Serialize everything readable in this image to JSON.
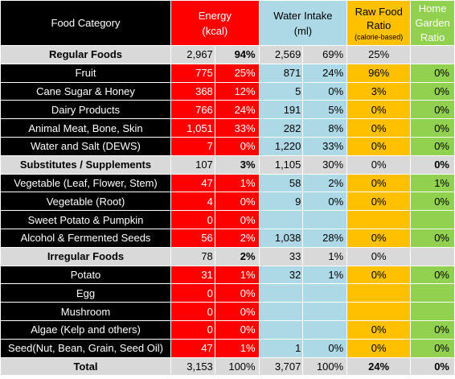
{
  "header": {
    "food_category": "Food Category",
    "energy_l1": "Energy",
    "energy_l2": "(kcal)",
    "water_l1": "Water Intake",
    "water_l2": "(ml)",
    "raw_l1": "Raw Food",
    "raw_l2": "Ratio",
    "raw_l3": "(calorie-based)",
    "home_l1": "Home",
    "home_l2": "Garden",
    "home_l3": "Ratio"
  },
  "rows": [
    {
      "name": "Regular Foods",
      "energy": "2,967",
      "energy_pct": "94%",
      "water": "2,569",
      "water_pct": "69%",
      "raw": "25%",
      "home": ""
    },
    {
      "name": "Fruit",
      "energy": "775",
      "energy_pct": "25%",
      "water": "871",
      "water_pct": "24%",
      "raw": "96%",
      "home": "0%"
    },
    {
      "name": "Cane Sugar & Honey",
      "energy": "368",
      "energy_pct": "12%",
      "water": "5",
      "water_pct": "0%",
      "raw": "3%",
      "home": "0%"
    },
    {
      "name": "Dairy Products",
      "energy": "766",
      "energy_pct": "24%",
      "water": "191",
      "water_pct": "5%",
      "raw": "0%",
      "home": "0%"
    },
    {
      "name": "Animal Meat, Bone, Skin",
      "energy": "1,051",
      "energy_pct": "33%",
      "water": "282",
      "water_pct": "8%",
      "raw": "0%",
      "home": "0%"
    },
    {
      "name": "Water and Salt (DEWS)",
      "energy": "7",
      "energy_pct": "0%",
      "water": "1,220",
      "water_pct": "33%",
      "raw": "0%",
      "home": "0%"
    },
    {
      "name": "Substitutes / Supplements",
      "energy": "107",
      "energy_pct": "3%",
      "water": "1,105",
      "water_pct": "30%",
      "raw": "0%",
      "home": "0%"
    },
    {
      "name": "Vegetable (Leaf, Flower, Stem)",
      "energy": "47",
      "energy_pct": "1%",
      "water": "58",
      "water_pct": "2%",
      "raw": "0%",
      "home": "1%"
    },
    {
      "name": "Vegetable (Root)",
      "energy": "4",
      "energy_pct": "0%",
      "water": "9",
      "water_pct": "0%",
      "raw": "0%",
      "home": "0%"
    },
    {
      "name": "Sweet Potato & Pumpkin",
      "energy": "0",
      "energy_pct": "0%",
      "water": "",
      "water_pct": "",
      "raw": "",
      "home": ""
    },
    {
      "name": "Alcohol & Fermented Seeds",
      "energy": "56",
      "energy_pct": "2%",
      "water": "1,038",
      "water_pct": "28%",
      "raw": "0%",
      "home": "0%"
    },
    {
      "name": "Irregular Foods",
      "energy": "78",
      "energy_pct": "2%",
      "water": "33",
      "water_pct": "1%",
      "raw": "0%",
      "home": ""
    },
    {
      "name": "Potato",
      "energy": "31",
      "energy_pct": "1%",
      "water": "32",
      "water_pct": "1%",
      "raw": "0%",
      "home": "0%"
    },
    {
      "name": "Egg",
      "energy": "0",
      "energy_pct": "0%",
      "water": "",
      "water_pct": "",
      "raw": "",
      "home": ""
    },
    {
      "name": "Mushroom",
      "energy": "0",
      "energy_pct": "0%",
      "water": "",
      "water_pct": "",
      "raw": "",
      "home": ""
    },
    {
      "name": "Algae (Kelp and others)",
      "energy": "0",
      "energy_pct": "0%",
      "water": "",
      "water_pct": "",
      "raw": "0%",
      "home": "0%"
    },
    {
      "name": "Seed(Nut, Bean, Grain, Seed Oil)",
      "energy": "47",
      "energy_pct": "1%",
      "water": "1",
      "water_pct": "0%",
      "raw": "0%",
      "home": "0%"
    },
    {
      "name": "Total",
      "energy": "3,153",
      "energy_pct": "100%",
      "water": "3,707",
      "water_pct": "100%",
      "raw": "24%",
      "home": "0%"
    }
  ],
  "colors": {
    "energy_column": "#ff0000",
    "water_column": "#add8e6",
    "raw_column": "#ffc000",
    "home_column": "#92d050",
    "summary_row": "#d9d9d9",
    "item_label": "#000000"
  }
}
